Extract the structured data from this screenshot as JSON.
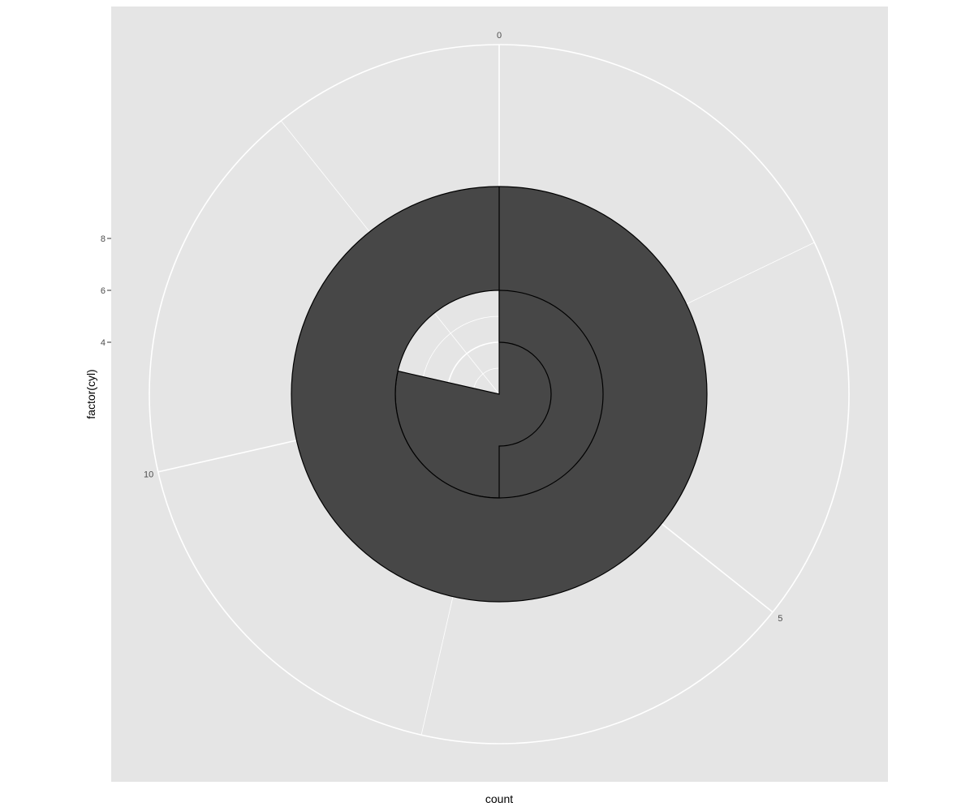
{
  "chart_data": {
    "type": "bar",
    "coord": "polar",
    "theta_variable": "count",
    "radius_variable": "factor(cyl)",
    "categories": [
      "4",
      "6",
      "8"
    ],
    "values": [
      11,
      7,
      14
    ],
    "theta_range": [
      0,
      14
    ],
    "theta_ticks": [
      0,
      5,
      10
    ],
    "radius_ticks": [
      "4",
      "6",
      "8"
    ],
    "xlabel": "count",
    "ylabel": "factor(cyl)",
    "grid": true,
    "legend": "none",
    "colors": {
      "panel_bg": "#e5e5e5",
      "grid": "#ffffff",
      "bar_fill": "#474747",
      "bar_outline": "#000000",
      "tick_text": "#4d4d4d"
    }
  }
}
